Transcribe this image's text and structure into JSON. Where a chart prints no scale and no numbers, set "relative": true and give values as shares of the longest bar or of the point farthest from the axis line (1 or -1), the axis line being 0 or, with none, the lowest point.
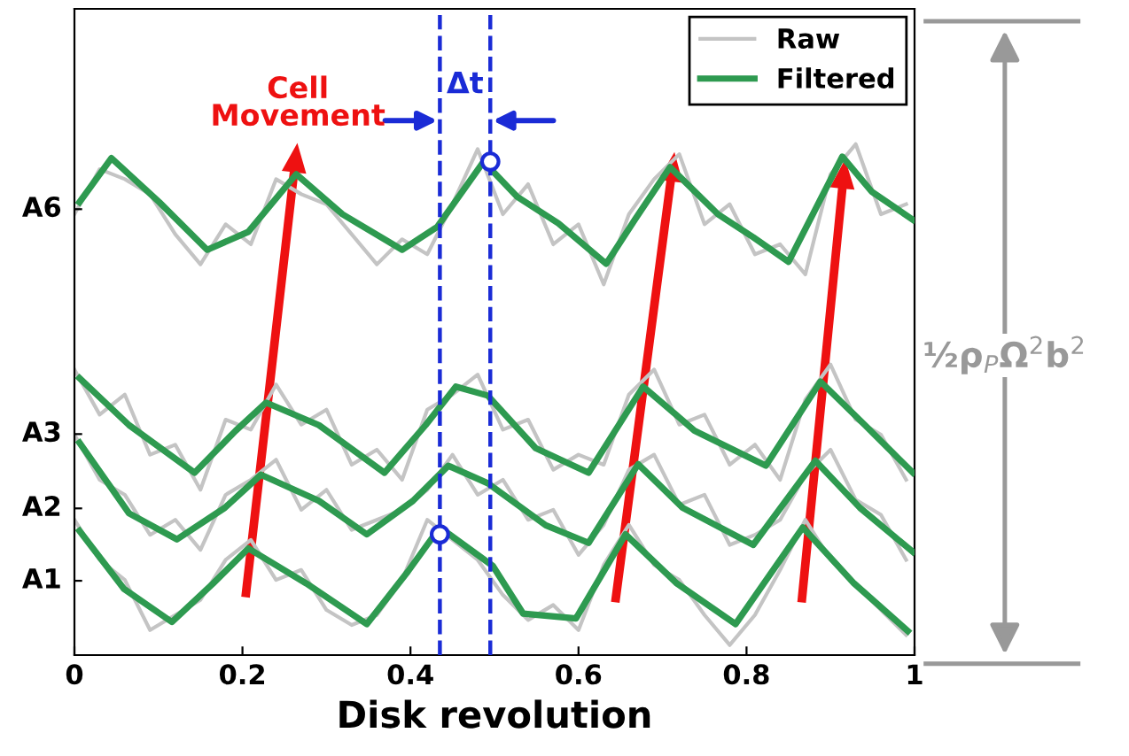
{
  "chart_data": {
    "type": "line",
    "relative": true,
    "xlabel": "Disk revolution",
    "xlim": [
      0,
      1
    ],
    "xticks": [
      0,
      0.2,
      0.4,
      0.6,
      0.8,
      1
    ],
    "grid": false,
    "legend": "top right",
    "series": [
      {
        "name": "Raw",
        "color": "#c4c4c4",
        "x": [
          0,
          0.03,
          0.06,
          0.09,
          0.12,
          0.15,
          0.18,
          0.21,
          0.24,
          0.27,
          0.3,
          0.33,
          0.36,
          0.39,
          0.42,
          0.45,
          0.48,
          0.51,
          0.54,
          0.57,
          0.6,
          0.63,
          0.66,
          0.69,
          0.72,
          0.75,
          0.78,
          0.81,
          0.84,
          0.87,
          0.9,
          0.93,
          0.96,
          0.99
        ],
        "values": [
          0.86,
          0.95,
          0.93,
          0.9,
          0.82,
          0.76,
          0.84,
          0.8,
          0.93,
          0.9,
          0.88,
          0.82,
          0.76,
          0.81,
          0.78,
          0.88,
          0.99,
          0.86,
          0.92,
          0.8,
          0.84,
          0.72,
          0.86,
          0.93,
          0.98,
          0.84,
          0.88,
          0.78,
          0.8,
          0.74,
          0.94,
          1.0,
          0.86,
          0.88
        ]
      },
      {
        "color": "#c4c4c4",
        "x": [
          0,
          0.03,
          0.06,
          0.09,
          0.12,
          0.15,
          0.18,
          0.21,
          0.24,
          0.27,
          0.3,
          0.33,
          0.36,
          0.39,
          0.42,
          0.45,
          0.48,
          0.51,
          0.54,
          0.57,
          0.6,
          0.63,
          0.66,
          0.69,
          0.72,
          0.75,
          0.78,
          0.81,
          0.84,
          0.87,
          0.9,
          0.93,
          0.96,
          0.99
        ],
        "values": [
          0.55,
          0.46,
          0.5,
          0.38,
          0.4,
          0.31,
          0.45,
          0.43,
          0.52,
          0.44,
          0.47,
          0.36,
          0.39,
          0.33,
          0.47,
          0.5,
          0.54,
          0.43,
          0.45,
          0.35,
          0.38,
          0.36,
          0.5,
          0.55,
          0.44,
          0.46,
          0.36,
          0.4,
          0.33,
          0.49,
          0.56,
          0.45,
          0.42,
          0.33
        ]
      },
      {
        "color": "#c4c4c4",
        "x": [
          0,
          0.03,
          0.06,
          0.09,
          0.12,
          0.15,
          0.18,
          0.21,
          0.24,
          0.27,
          0.3,
          0.33,
          0.36,
          0.39,
          0.42,
          0.45,
          0.48,
          0.51,
          0.54,
          0.57,
          0.6,
          0.63,
          0.66,
          0.69,
          0.72,
          0.75,
          0.78,
          0.81,
          0.84,
          0.87,
          0.9,
          0.93,
          0.96,
          0.99
        ],
        "values": [
          0.42,
          0.33,
          0.3,
          0.22,
          0.25,
          0.19,
          0.3,
          0.33,
          0.37,
          0.27,
          0.31,
          0.23,
          0.25,
          0.27,
          0.31,
          0.38,
          0.3,
          0.33,
          0.25,
          0.27,
          0.18,
          0.24,
          0.35,
          0.38,
          0.28,
          0.3,
          0.2,
          0.22,
          0.25,
          0.34,
          0.39,
          0.29,
          0.26,
          0.17
        ]
      },
      {
        "color": "#c4c4c4",
        "x": [
          0,
          0.03,
          0.06,
          0.09,
          0.12,
          0.15,
          0.18,
          0.21,
          0.24,
          0.27,
          0.3,
          0.33,
          0.36,
          0.39,
          0.42,
          0.45,
          0.48,
          0.51,
          0.54,
          0.57,
          0.6,
          0.63,
          0.66,
          0.69,
          0.72,
          0.75,
          0.78,
          0.81,
          0.84,
          0.87,
          0.9,
          0.93,
          0.96,
          0.99
        ],
        "values": [
          0.25,
          0.17,
          0.13,
          0.03,
          0.06,
          0.09,
          0.17,
          0.21,
          0.13,
          0.15,
          0.07,
          0.04,
          0.06,
          0.13,
          0.25,
          0.21,
          0.17,
          0.1,
          0.05,
          0.08,
          0.03,
          0.16,
          0.24,
          0.16,
          0.13,
          0.06,
          0.0,
          0.06,
          0.15,
          0.25,
          0.17,
          0.12,
          0.07,
          0.02
        ]
      },
      {
        "name": "Filtered",
        "color": "#2e9a50",
        "x": [
          0.006,
          0.044,
          0.101,
          0.158,
          0.207,
          0.264,
          0.319,
          0.39,
          0.432,
          0.487,
          0.527,
          0.576,
          0.633,
          0.667,
          0.709,
          0.766,
          0.808,
          0.85,
          0.914,
          0.949,
          0.998
        ],
        "values": [
          0.884,
          0.972,
          0.884,
          0.789,
          0.825,
          0.94,
          0.86,
          0.789,
          0.835,
          0.965,
          0.895,
          0.842,
          0.761,
          0.849,
          0.954,
          0.86,
          0.814,
          0.765,
          0.975,
          0.905,
          0.849
        ]
      },
      {
        "color": "#2e9a50",
        "x": [
          0.006,
          0.065,
          0.143,
          0.192,
          0.228,
          0.291,
          0.369,
          0.418,
          0.454,
          0.492,
          0.549,
          0.612,
          0.677,
          0.738,
          0.823,
          0.888,
          0.941,
          0.998
        ],
        "values": [
          0.533,
          0.439,
          0.344,
          0.428,
          0.484,
          0.439,
          0.344,
          0.439,
          0.516,
          0.498,
          0.393,
          0.344,
          0.516,
          0.428,
          0.358,
          0.526,
          0.439,
          0.344
        ]
      },
      {
        "color": "#2e9a50",
        "x": [
          0.006,
          0.065,
          0.122,
          0.179,
          0.222,
          0.291,
          0.348,
          0.403,
          0.445,
          0.492,
          0.561,
          0.612,
          0.671,
          0.724,
          0.808,
          0.882,
          0.935,
          0.998
        ],
        "values": [
          0.404,
          0.263,
          0.211,
          0.274,
          0.34,
          0.288,
          0.221,
          0.288,
          0.358,
          0.323,
          0.239,
          0.204,
          0.361,
          0.274,
          0.2,
          0.368,
          0.274,
          0.186
        ]
      },
      {
        "color": "#2e9a50",
        "x": [
          0.006,
          0.059,
          0.116,
          0.165,
          0.207,
          0.276,
          0.348,
          0.397,
          0.435,
          0.498,
          0.534,
          0.597,
          0.656,
          0.717,
          0.787,
          0.867,
          0.928,
          0.992
        ],
        "values": [
          0.228,
          0.112,
          0.046,
          0.123,
          0.193,
          0.123,
          0.042,
          0.147,
          0.235,
          0.158,
          0.063,
          0.053,
          0.221,
          0.123,
          0.042,
          0.235,
          0.123,
          0.028
        ]
      },
      {
        "type": "scatter",
        "color": "#1a2bd6",
        "marker": "circle",
        "x": [
          0.435,
          0.495
        ],
        "values": [
          0.221,
          0.965
        ]
      }
    ],
    "ref_lines": [
      {
        "axis": "x",
        "value": 0.435,
        "color": "#1a2bd6",
        "line_style": "dashed"
      },
      {
        "axis": "x",
        "value": 0.495,
        "color": "#1a2bd6",
        "line_style": "dashed"
      }
    ],
    "annotations": [
      "A6",
      "A3",
      "A2",
      "A1",
      "Cell\nMovement",
      "Δt",
      "½ρ$_{P}$Ω$^{2}$b$^{2}$"
    ]
  }
}
